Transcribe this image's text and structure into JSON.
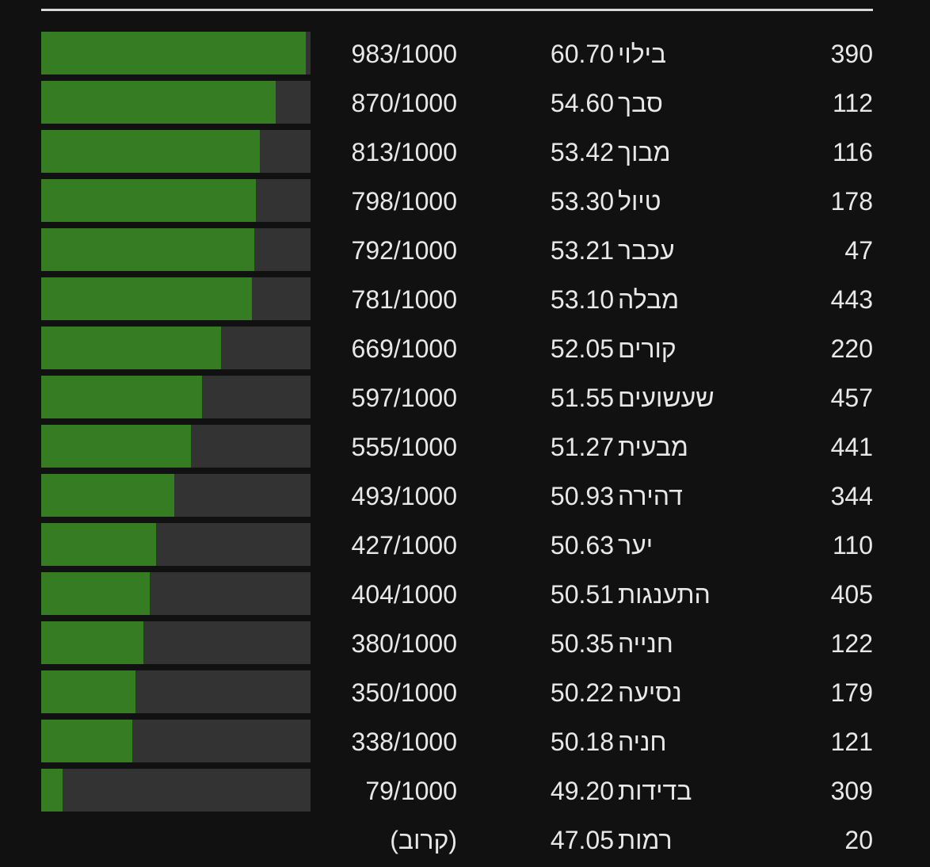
{
  "colors": {
    "background": "#111111",
    "bar_fill": "#367c22",
    "bar_track": "#333333",
    "text": "#e8e8e8",
    "rule": "#d9d9d9"
  },
  "rows": [
    {
      "id": "390",
      "word": "בילוי",
      "value": "60.70",
      "score_text": "983/1000",
      "score": 983
    },
    {
      "id": "112",
      "word": "סבך",
      "value": "54.60",
      "score_text": "870/1000",
      "score": 870
    },
    {
      "id": "116",
      "word": "מבוך",
      "value": "53.42",
      "score_text": "813/1000",
      "score": 813
    },
    {
      "id": "178",
      "word": "טיול",
      "value": "53.30",
      "score_text": "798/1000",
      "score": 798
    },
    {
      "id": "47",
      "word": "עכבר",
      "value": "53.21",
      "score_text": "792/1000",
      "score": 792
    },
    {
      "id": "443",
      "word": "מבלה",
      "value": "53.10",
      "score_text": "781/1000",
      "score": 781
    },
    {
      "id": "220",
      "word": "קורים",
      "value": "52.05",
      "score_text": "669/1000",
      "score": 669
    },
    {
      "id": "457",
      "word": "שעשועים",
      "value": "51.55",
      "score_text": "597/1000",
      "score": 597
    },
    {
      "id": "441",
      "word": "מבעית",
      "value": "51.27",
      "score_text": "555/1000",
      "score": 555
    },
    {
      "id": "344",
      "word": "דהירה",
      "value": "50.93",
      "score_text": "493/1000",
      "score": 493
    },
    {
      "id": "110",
      "word": "יער",
      "value": "50.63",
      "score_text": "427/1000",
      "score": 427
    },
    {
      "id": "405",
      "word": "התענגות",
      "value": "50.51",
      "score_text": "404/1000",
      "score": 404
    },
    {
      "id": "122",
      "word": "חנייה",
      "value": "50.35",
      "score_text": "380/1000",
      "score": 380
    },
    {
      "id": "179",
      "word": "נסיעה",
      "value": "50.22",
      "score_text": "350/1000",
      "score": 350
    },
    {
      "id": "121",
      "word": "חניה",
      "value": "50.18",
      "score_text": "338/1000",
      "score": 338
    },
    {
      "id": "309",
      "word": "בדידות",
      "value": "49.20",
      "score_text": "79/1000",
      "score": 79
    },
    {
      "id": "20",
      "word": "רמות",
      "value": "47.05",
      "score_text": "(קרוב)",
      "score": 0
    }
  ]
}
